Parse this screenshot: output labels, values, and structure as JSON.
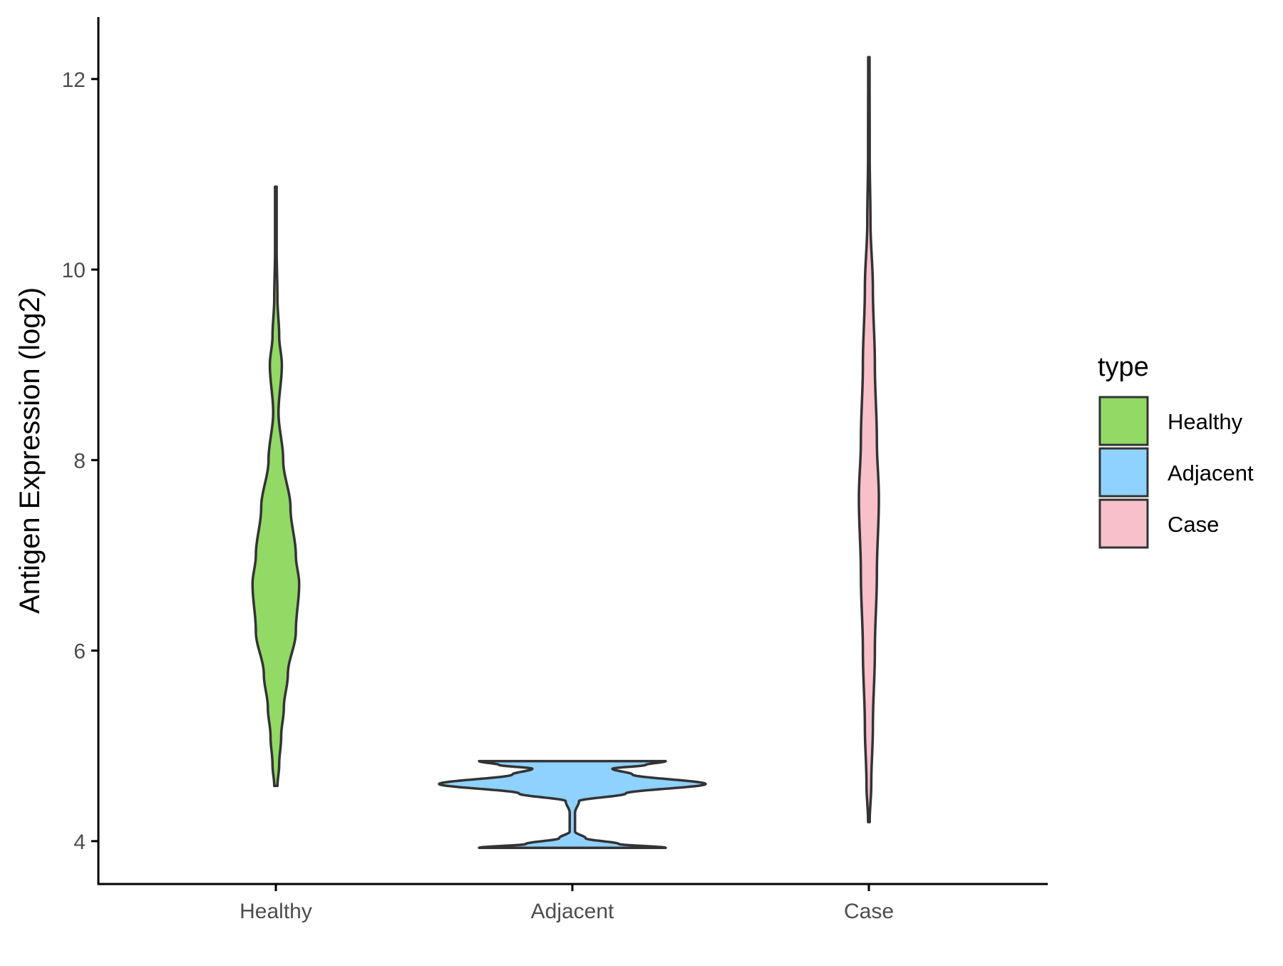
{
  "chart_data": {
    "type": "violin",
    "xlabel": "",
    "ylabel": "Antigen Expression (log2)",
    "ylim": [
      3.55,
      12.65
    ],
    "yticks": [
      4,
      6,
      8,
      10,
      12
    ],
    "categories": [
      "Healthy",
      "Adjacent",
      "Case"
    ],
    "grid": false,
    "legend": {
      "title": "type",
      "position": "right",
      "entries": [
        "Healthy",
        "Adjacent",
        "Case"
      ]
    },
    "colors": {
      "Healthy": "#92d966",
      "Adjacent": "#8fd1ff",
      "Case": "#f7c0cb",
      "outline": "#333333"
    },
    "series": [
      {
        "category": "Healthy",
        "min": 4.58,
        "max": 10.87,
        "profile": [
          [
            4.58,
            0.012
          ],
          [
            4.8,
            0.025
          ],
          [
            5.1,
            0.04
          ],
          [
            5.4,
            0.06
          ],
          [
            5.75,
            0.09
          ],
          [
            6.2,
            0.15
          ],
          [
            6.7,
            0.175
          ],
          [
            7.0,
            0.15
          ],
          [
            7.5,
            0.11
          ],
          [
            8.0,
            0.055
          ],
          [
            8.5,
            0.02
          ],
          [
            9.0,
            0.045
          ],
          [
            9.3,
            0.025
          ],
          [
            9.7,
            0.012
          ],
          [
            10.2,
            0.006
          ],
          [
            10.87,
            0.006
          ]
        ]
      },
      {
        "category": "Adjacent",
        "min": 3.93,
        "max": 4.84,
        "profile": [
          [
            3.93,
            0.7
          ],
          [
            3.97,
            0.35
          ],
          [
            4.03,
            0.1
          ],
          [
            4.1,
            0.02
          ],
          [
            4.3,
            0.02
          ],
          [
            4.42,
            0.05
          ],
          [
            4.5,
            0.4
          ],
          [
            4.6,
            1.0
          ],
          [
            4.7,
            0.45
          ],
          [
            4.76,
            0.3
          ],
          [
            4.8,
            0.55
          ],
          [
            4.84,
            0.7
          ]
        ]
      },
      {
        "category": "Case",
        "min": 4.2,
        "max": 12.23,
        "profile": [
          [
            4.2,
            0.006
          ],
          [
            4.6,
            0.018
          ],
          [
            5.2,
            0.03
          ],
          [
            6.0,
            0.045
          ],
          [
            6.8,
            0.06
          ],
          [
            7.6,
            0.075
          ],
          [
            8.2,
            0.06
          ],
          [
            9.0,
            0.045
          ],
          [
            9.8,
            0.03
          ],
          [
            10.5,
            0.012
          ],
          [
            11.2,
            0.006
          ],
          [
            12.23,
            0.005
          ]
        ]
      }
    ]
  }
}
